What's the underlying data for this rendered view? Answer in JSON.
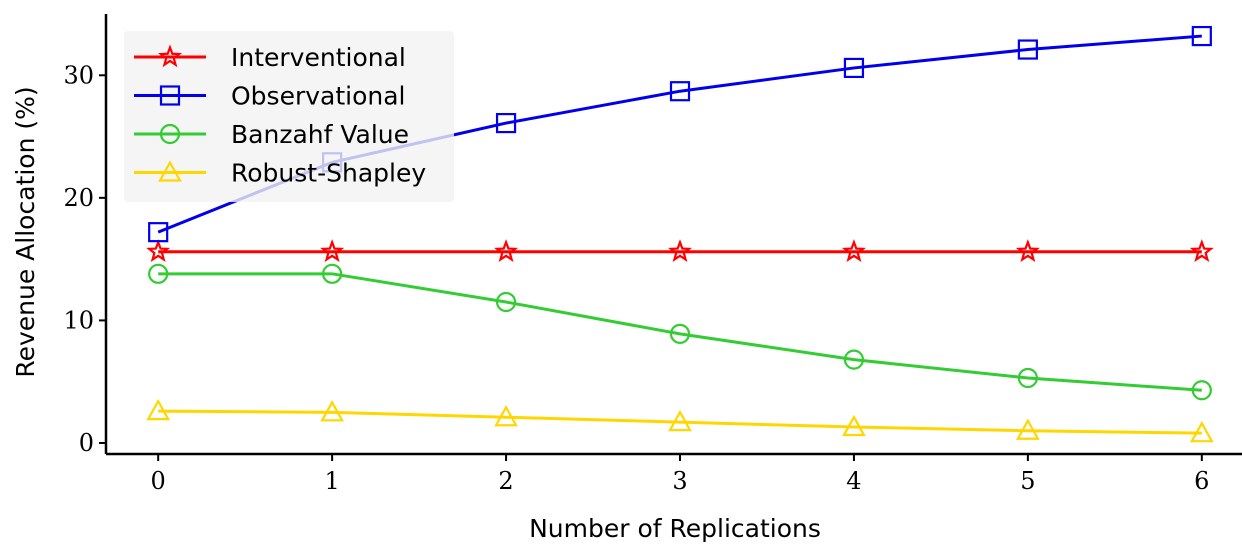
{
  "chart_data": {
    "type": "line",
    "xlabel": "Number of Replications",
    "ylabel": "Revenue Allocation (%)",
    "x": [
      0,
      1,
      2,
      3,
      4,
      5,
      6
    ],
    "xticks": [
      "0",
      "1",
      "2",
      "3",
      "4",
      "5",
      "6"
    ],
    "yticks": [
      "0",
      "10",
      "20",
      "30"
    ],
    "xlim": [
      -0.3,
      6.3
    ],
    "ylim": [
      -0.9,
      35
    ],
    "grid": false,
    "legend_position": "top-left",
    "series": [
      {
        "name": "Interventional",
        "color": "#ff0000",
        "marker": "star",
        "values": [
          15.6,
          15.6,
          15.6,
          15.6,
          15.6,
          15.6,
          15.6
        ]
      },
      {
        "name": "Observational",
        "color": "#0000ee",
        "marker": "square",
        "values": [
          17.2,
          22.9,
          26.1,
          28.7,
          30.6,
          32.1,
          33.2
        ]
      },
      {
        "name": "Banzahf Value",
        "color": "#33cc33",
        "marker": "circle",
        "values": [
          13.8,
          13.8,
          11.5,
          8.9,
          6.8,
          5.3,
          4.3
        ]
      },
      {
        "name": "Robust-Shapley",
        "color": "#ffd700",
        "marker": "triangle",
        "values": [
          2.6,
          2.5,
          2.1,
          1.7,
          1.3,
          1.0,
          0.8
        ]
      }
    ]
  }
}
